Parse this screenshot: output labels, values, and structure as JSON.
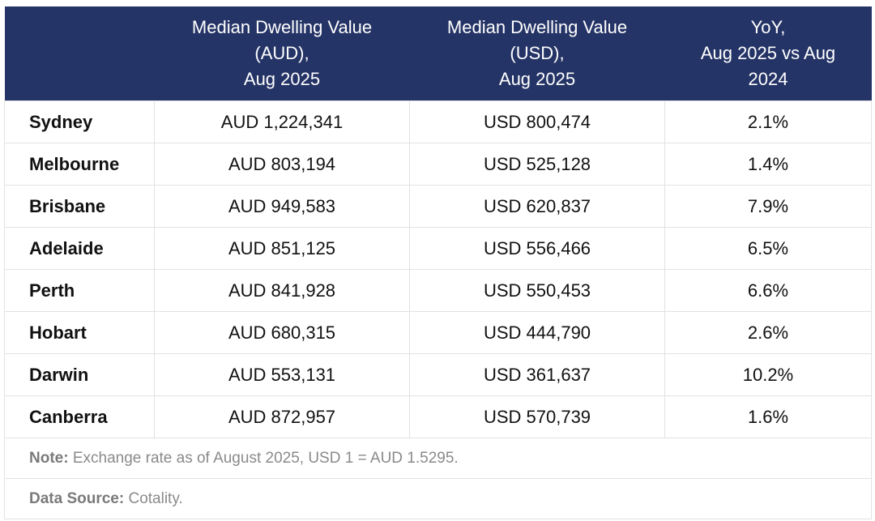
{
  "table": {
    "header": [
      "",
      "Median Dwelling Value\n(AUD),\nAug 2025",
      "Median Dwelling Value\n(USD),\nAug 2025",
      "YoY,\nAug 2025 vs Aug\n2024"
    ],
    "rows": [
      [
        "Sydney",
        "AUD 1,224,341",
        "USD 800,474",
        "2.1%"
      ],
      [
        "Melbourne",
        "AUD 803,194",
        "USD 525,128",
        "1.4%"
      ],
      [
        "Brisbane",
        "AUD 949,583",
        "USD 620,837",
        "7.9%"
      ],
      [
        "Adelaide",
        "AUD 851,125",
        "USD 556,466",
        "6.5%"
      ],
      [
        "Perth",
        "AUD 841,928",
        "USD 550,453",
        "6.6%"
      ],
      [
        "Hobart",
        "AUD 680,315",
        "USD 444,790",
        "2.6%"
      ],
      [
        "Darwin",
        "AUD 553,131",
        "USD 361,637",
        "10.2%"
      ],
      [
        "Canberra",
        "AUD 872,957",
        "USD 570,739",
        "1.6%"
      ]
    ],
    "note": {
      "label": "Note:",
      "text": " Exchange rate as of August 2025, USD 1 = AUD 1.5295."
    },
    "source": {
      "label": "Data Source:",
      "text": " Cotality."
    }
  }
}
